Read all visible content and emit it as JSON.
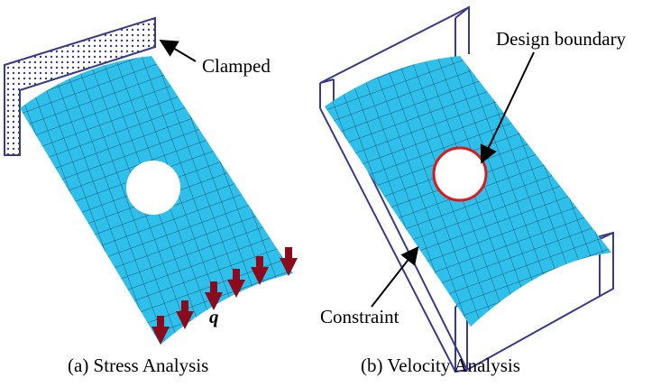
{
  "left": {
    "clamp_label": "Clamped",
    "load_label": "q",
    "caption": "(a) Stress Analysis"
  },
  "right": {
    "boundary_label": "Design boundary",
    "constraint_label": "Constraint",
    "caption": "(b) Velocity Analysis"
  }
}
